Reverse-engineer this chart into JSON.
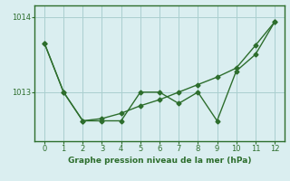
{
  "x": [
    0,
    1,
    2,
    3,
    4,
    5,
    6,
    7,
    8,
    9,
    10,
    11,
    12
  ],
  "line1": [
    1013.65,
    1013.0,
    1012.62,
    1012.62,
    1012.62,
    1013.0,
    1013.0,
    1012.85,
    1013.0,
    1012.62,
    1013.28,
    1013.5,
    1013.93
  ],
  "line2": [
    1013.65,
    1013.0,
    1012.62,
    1012.65,
    1012.72,
    1012.82,
    1012.9,
    1013.0,
    1013.1,
    1013.2,
    1013.32,
    1013.62,
    1013.93
  ],
  "xlim": [
    -0.5,
    12.5
  ],
  "ylim": [
    1012.35,
    1014.15
  ],
  "yticks": [
    1013,
    1014
  ],
  "xticks": [
    0,
    1,
    2,
    3,
    4,
    5,
    6,
    7,
    8,
    9,
    10,
    11,
    12
  ],
  "line_color": "#2d6e2d",
  "bg_color": "#daeef0",
  "grid_color": "#aacfcf",
  "border_color": "#2d6e2d",
  "xlabel": "Graphe pression niveau de la mer (hPa)",
  "xlabel_color": "#2d6e2d",
  "marker": "D",
  "markersize": 2.5,
  "linewidth": 1.0
}
